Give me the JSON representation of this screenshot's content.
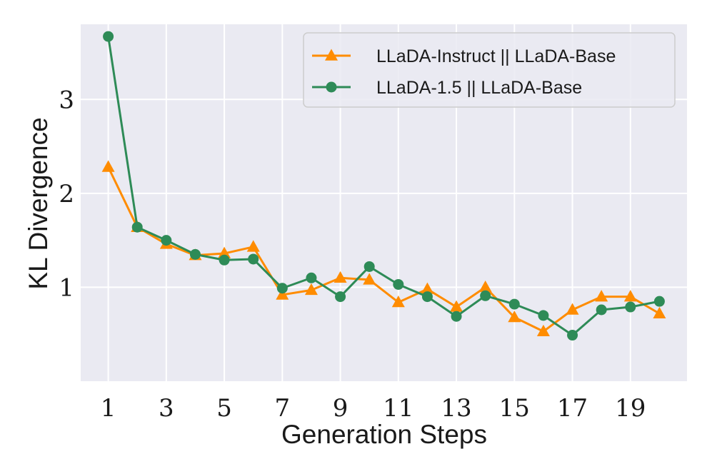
{
  "chart_data": {
    "type": "line",
    "xlabel": "Generation Steps",
    "ylabel": "KL Divergence",
    "x": [
      1,
      2,
      3,
      4,
      5,
      6,
      7,
      8,
      9,
      10,
      11,
      12,
      13,
      14,
      15,
      16,
      17,
      18,
      19,
      20
    ],
    "xticks": [
      1,
      3,
      5,
      7,
      9,
      11,
      13,
      15,
      17,
      19
    ],
    "yticks": [
      1,
      2,
      3
    ],
    "xlim": [
      0.05,
      20.95
    ],
    "ylim": [
      0.0,
      3.8
    ],
    "grid": true,
    "legend_position": "top-right",
    "series": [
      {
        "name": "LLaDA-Instruct || LLaDA-Base",
        "color": "#ff8c00",
        "marker": "triangle",
        "values": [
          2.28,
          1.64,
          1.46,
          1.34,
          1.36,
          1.43,
          0.92,
          0.97,
          1.1,
          1.08,
          0.84,
          0.98,
          0.79,
          1.0,
          0.68,
          0.53,
          0.76,
          0.9,
          0.9,
          0.72
        ]
      },
      {
        "name": "LLaDA-1.5 || LLaDA-Base",
        "color": "#2e8b57",
        "marker": "circle",
        "values": [
          3.67,
          1.64,
          1.5,
          1.35,
          1.29,
          1.3,
          0.99,
          1.1,
          0.9,
          1.22,
          1.03,
          0.9,
          0.69,
          0.91,
          0.82,
          0.7,
          0.49,
          0.76,
          0.79,
          0.85
        ]
      }
    ]
  }
}
